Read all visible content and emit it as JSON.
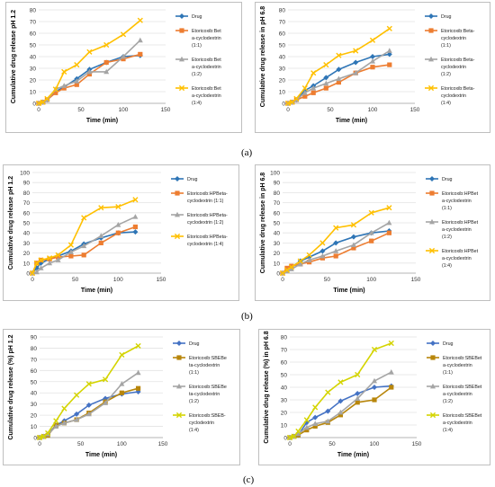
{
  "panel_labels": [
    "(a)",
    "(b)",
    "(c)"
  ],
  "chart_data": [
    {
      "type": "line",
      "xlabel": "Time (min)",
      "ylabel": "Cumulative drug release pH 1.2",
      "xlim": [
        0,
        150
      ],
      "ylim": [
        0,
        80
      ],
      "xticks": [
        0,
        50,
        100,
        150
      ],
      "yticks": [
        0,
        10,
        20,
        30,
        40,
        50,
        60,
        70,
        80
      ],
      "x": [
        0,
        5,
        10,
        20,
        30,
        45,
        60,
        80,
        100,
        120
      ],
      "legend_position": "right",
      "series": [
        {
          "name": [
            "Drug"
          ],
          "color": "#2e75b6",
          "marker": "diamond",
          "values": [
            0,
            1,
            3,
            10,
            14,
            21,
            29,
            35,
            40,
            41
          ]
        },
        {
          "name": [
            "Etoricoxib:Bet",
            "a-cyclodextrin",
            "(1:1)"
          ],
          "color": "#ed7d31",
          "marker": "square",
          "values": [
            0,
            1,
            3,
            9,
            13,
            16,
            25,
            35,
            38,
            42
          ]
        },
        {
          "name": [
            "Etoricoxib:Bet",
            "a-cyclodextrin",
            "(1:2)"
          ],
          "color": "#a5a5a5",
          "marker": "triangle",
          "values": [
            0,
            1,
            3,
            12,
            15,
            19,
            27,
            27,
            40,
            54
          ]
        },
        {
          "name": [
            "Etoricoxib:Bet",
            "a-cyclodextrin",
            "(1:4)"
          ],
          "color": "#ffc000",
          "marker": "x",
          "values": [
            0,
            1,
            4,
            12,
            27,
            33,
            44,
            50,
            59,
            71
          ]
        }
      ]
    },
    {
      "type": "line",
      "xlabel": "Time (min)",
      "ylabel": "Cumulative drug release in pH 6.8",
      "xlim": [
        0,
        150
      ],
      "ylim": [
        0,
        80
      ],
      "xticks": [
        0,
        50,
        100,
        150
      ],
      "yticks": [
        0,
        10,
        20,
        30,
        40,
        50,
        60,
        70,
        80
      ],
      "x": [
        0,
        5,
        10,
        20,
        30,
        45,
        60,
        80,
        100,
        120
      ],
      "legend_position": "right",
      "series": [
        {
          "name": [
            "Drug"
          ],
          "color": "#2e75b6",
          "marker": "diamond",
          "values": [
            0,
            1,
            3,
            11,
            15,
            22,
            29,
            35,
            40,
            42
          ]
        },
        {
          "name": [
            "Etoricoxib:Beta-",
            "cyclodextrin",
            "(1:1)"
          ],
          "color": "#ed7d31",
          "marker": "square",
          "values": [
            0,
            1,
            3,
            6,
            9,
            13,
            18,
            26,
            31,
            33
          ]
        },
        {
          "name": [
            "Etoricoxib:Beta-",
            "cyclodextrin",
            "(1:2)"
          ],
          "color": "#a5a5a5",
          "marker": "triangle",
          "values": [
            0,
            1,
            3,
            9,
            13,
            17,
            21,
            26,
            36,
            45
          ]
        },
        {
          "name": [
            "Etoricoxib:Beta-",
            "cyclodextrin",
            "(1:4)"
          ],
          "color": "#ffc000",
          "marker": "x",
          "values": [
            0,
            1,
            4,
            13,
            26,
            33,
            41,
            45,
            54,
            64
          ]
        }
      ]
    },
    {
      "type": "line",
      "xlabel": "Time (min)",
      "ylabel": "Cumulative drug release pH 1.2",
      "xlim": [
        0,
        150
      ],
      "ylim": [
        0,
        100
      ],
      "xticks": [
        0,
        50,
        100,
        150
      ],
      "yticks": [
        0,
        10,
        20,
        30,
        40,
        50,
        60,
        70,
        80,
        90,
        100
      ],
      "x": [
        0,
        5,
        10,
        20,
        30,
        45,
        60,
        80,
        100,
        120
      ],
      "legend_position": "right",
      "series": [
        {
          "name": [
            "Drug"
          ],
          "color": "#2e75b6",
          "marker": "diamond",
          "values": [
            0,
            5,
            10,
            14,
            17,
            22,
            29,
            35,
            40,
            41
          ]
        },
        {
          "name": [
            "Etoricoxib:HPBeta-",
            "cyclodextrin (1:1)"
          ],
          "color": "#ed7d31",
          "marker": "square",
          "values": [
            0,
            10,
            13,
            14,
            16,
            17,
            18,
            30,
            40,
            46
          ]
        },
        {
          "name": [
            "Etoricoxib:HPBeta-",
            "cyclodextrin (1:2)"
          ],
          "color": "#a5a5a5",
          "marker": "triangle",
          "values": [
            0,
            1,
            5,
            10,
            13,
            21,
            27,
            37,
            48,
            56
          ]
        },
        {
          "name": [
            "Etoricoxib:HPBeta-",
            "cyclodextrin (1:4)"
          ],
          "color": "#ffc000",
          "marker": "x",
          "values": [
            0,
            10,
            13,
            15,
            18,
            28,
            55,
            65,
            66,
            73
          ]
        }
      ]
    },
    {
      "type": "line",
      "xlabel": "Time (min)",
      "ylabel": "Cumulative drug release in pH 6.8",
      "xlim": [
        0,
        150
      ],
      "ylim": [
        0,
        100
      ],
      "xticks": [
        0,
        50,
        100,
        150
      ],
      "yticks": [
        0,
        10,
        20,
        30,
        40,
        50,
        60,
        70,
        80,
        90,
        100
      ],
      "x": [
        0,
        5,
        10,
        20,
        30,
        45,
        60,
        80,
        100,
        120
      ],
      "legend_position": "right",
      "series": [
        {
          "name": [
            "Drug"
          ],
          "color": "#2e75b6",
          "marker": "diamond",
          "values": [
            0,
            3,
            6,
            12,
            16,
            22,
            30,
            36,
            40,
            42
          ]
        },
        {
          "name": [
            "Etoricoxib:HPBet",
            "a-cyclodextrin",
            "(1:1)"
          ],
          "color": "#ed7d31",
          "marker": "square",
          "values": [
            0,
            5,
            7,
            9,
            11,
            15,
            17,
            25,
            32,
            40
          ]
        },
        {
          "name": [
            "Etoricoxib:HPBet",
            "a-cyclodextrin",
            "(1:2)"
          ],
          "color": "#a5a5a5",
          "marker": "triangle",
          "values": [
            0,
            2,
            4,
            9,
            13,
            17,
            22,
            28,
            40,
            50
          ]
        },
        {
          "name": [
            "Etoricoxib:HPBet",
            "a-cyclodextrin",
            "(1:4)"
          ],
          "color": "#ffc000",
          "marker": "x",
          "values": [
            0,
            3,
            6,
            12,
            18,
            30,
            45,
            48,
            60,
            65
          ]
        }
      ]
    },
    {
      "type": "line",
      "xlabel": "Time (min)",
      "ylabel": "Cumulative drug release (%) pH 1.2",
      "xlim": [
        0,
        150
      ],
      "ylim": [
        0,
        90
      ],
      "xticks": [
        0,
        50,
        100,
        150
      ],
      "yticks": [
        0,
        10,
        20,
        30,
        40,
        50,
        60,
        70,
        80,
        90
      ],
      "x": [
        0,
        5,
        10,
        20,
        30,
        45,
        60,
        80,
        100,
        120
      ],
      "legend_position": "right",
      "series": [
        {
          "name": [
            "Drug"
          ],
          "color": "#4472c4",
          "marker": "diamond",
          "values": [
            0,
            1,
            3,
            11,
            15,
            21,
            29,
            35,
            39,
            41
          ]
        },
        {
          "name": [
            "Etoricoxib:SBEBe",
            "ta-cyclodextrin",
            "(1:1)"
          ],
          "color": "#b8860b",
          "marker": "square",
          "values": [
            0,
            1,
            2,
            11,
            13,
            16,
            22,
            32,
            40,
            44
          ]
        },
        {
          "name": [
            "Etoricoxib:SBEBe",
            "ta-cyclodextrin",
            "(1:2)"
          ],
          "color": "#a5a5a5",
          "marker": "triangle",
          "values": [
            0,
            1,
            3,
            10,
            13,
            16,
            21,
            31,
            48,
            58
          ]
        },
        {
          "name": [
            "Etoricoxib:SBEB-",
            "cyclodextrin",
            "(1:4)"
          ],
          "color": "#d4d400",
          "marker": "x",
          "values": [
            0,
            1,
            4,
            15,
            26,
            38,
            48,
            52,
            74,
            82
          ]
        }
      ]
    },
    {
      "type": "line",
      "xlabel": "Time (min)",
      "ylabel": "Cumulative drug release (%) in pH 6.8",
      "xlim": [
        0,
        150
      ],
      "ylim": [
        0,
        80
      ],
      "xticks": [
        0,
        50,
        100,
        150
      ],
      "yticks": [
        0,
        10,
        20,
        30,
        40,
        50,
        60,
        70,
        80
      ],
      "x": [
        0,
        5,
        10,
        20,
        30,
        45,
        60,
        80,
        100,
        120
      ],
      "legend_position": "right",
      "series": [
        {
          "name": [
            "Drug"
          ],
          "color": "#4472c4",
          "marker": "diamond",
          "values": [
            0,
            1,
            2,
            12,
            16,
            21,
            29,
            35,
            40,
            41
          ]
        },
        {
          "name": [
            "Etoricoxib:SBEBet",
            "a-cyclodextrin",
            "(1:1)"
          ],
          "color": "#b8860b",
          "marker": "square",
          "values": [
            0,
            1,
            2,
            6,
            9,
            12,
            18,
            28,
            30,
            40
          ]
        },
        {
          "name": [
            "Etoricoxib:SBEBet",
            "a-cyclodextrin",
            "(1:2)"
          ],
          "color": "#a5a5a5",
          "marker": "triangle",
          "values": [
            0,
            1,
            3,
            8,
            11,
            13,
            20,
            31,
            45,
            52
          ]
        },
        {
          "name": [
            "Etoricoxib:SBEBet",
            "a-cyclodextrin",
            "(1:4)"
          ],
          "color": "#d4d400",
          "marker": "x",
          "values": [
            0,
            1,
            5,
            14,
            24,
            36,
            44,
            50,
            70,
            75
          ]
        }
      ]
    }
  ]
}
